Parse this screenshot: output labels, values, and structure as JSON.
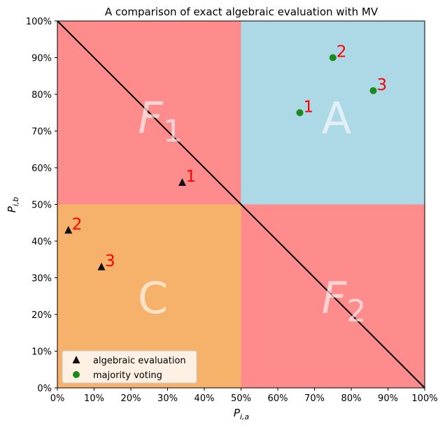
{
  "chart_data": {
    "type": "scatter",
    "title": "A comparison of exact algebraic evaluation with MV",
    "xlabel_main": "P",
    "xlabel_sub": "i,a",
    "ylabel_main": "P",
    "ylabel_sub": "i,b",
    "xlim": [
      0,
      1
    ],
    "ylim": [
      0,
      1
    ],
    "ticks": [
      0,
      0.1,
      0.2,
      0.3,
      0.4,
      0.5,
      0.6,
      0.7,
      0.8,
      0.9,
      1.0
    ],
    "tick_labels": [
      "0%",
      "10%",
      "20%",
      "30%",
      "40%",
      "50%",
      "60%",
      "70%",
      "80%",
      "90%",
      "100%"
    ],
    "regions": [
      {
        "id": "F1",
        "label_main": "F",
        "label_sub": "1",
        "color": "#ff8c8c",
        "x": [
          0,
          0.5
        ],
        "y": [
          0.5,
          1
        ],
        "label_at": [
          0.28,
          0.74
        ]
      },
      {
        "id": "A",
        "label_main": "A",
        "label_sub": "",
        "color": "#add8e6",
        "x": [
          0.5,
          1
        ],
        "y": [
          0.5,
          1
        ],
        "label_at": [
          0.76,
          0.74
        ]
      },
      {
        "id": "C",
        "label_main": "C",
        "label_sub": "",
        "color": "#f6b26b",
        "x": [
          0,
          0.5
        ],
        "y": [
          0,
          0.5
        ],
        "label_at": [
          0.26,
          0.25
        ]
      },
      {
        "id": "F2",
        "label_main": "F",
        "label_sub": "2",
        "color": "#ff8c8c",
        "x": [
          0.5,
          1
        ],
        "y": [
          0,
          0.5
        ],
        "label_at": [
          0.78,
          0.25
        ]
      }
    ],
    "diagonal": {
      "from": [
        0,
        1
      ],
      "to": [
        1,
        0
      ],
      "color": "#000000"
    },
    "series": [
      {
        "name": "algebraic evaluation",
        "marker": "triangle",
        "color": "#111111",
        "points": [
          {
            "x": 0.34,
            "y": 0.56,
            "label": "1"
          },
          {
            "x": 0.03,
            "y": 0.43,
            "label": "2"
          },
          {
            "x": 0.12,
            "y": 0.33,
            "label": "3"
          }
        ]
      },
      {
        "name": "majority voting",
        "marker": "circle",
        "color": "#1a8a1a",
        "points": [
          {
            "x": 0.66,
            "y": 0.75,
            "label": "1"
          },
          {
            "x": 0.75,
            "y": 0.9,
            "label": "2"
          },
          {
            "x": 0.86,
            "y": 0.81,
            "label": "3"
          }
        ]
      }
    ],
    "point_label_color": "#ff0000",
    "legend_placement": "lower-left",
    "grid": false
  }
}
